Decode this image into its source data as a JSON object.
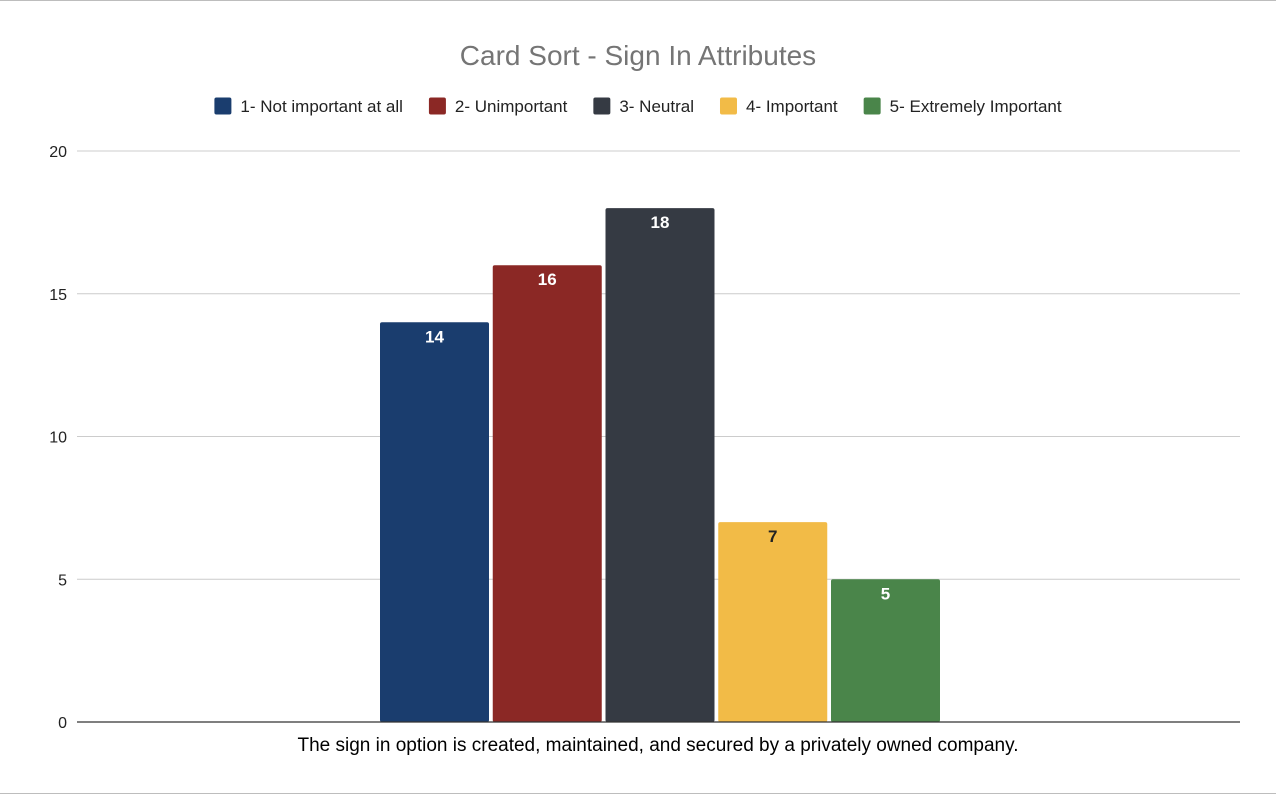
{
  "chart_data": {
    "type": "bar",
    "title": "Card Sort - Sign In Attributes",
    "xlabel": "The sign in option is created, maintained, and secured by a privately owned company.",
    "ylabel": "",
    "categories": [
      "The sign in option is created, maintained, and secured by a privately owned company."
    ],
    "series": [
      {
        "name": "1- Not important at all",
        "values": [
          14
        ],
        "color": "#1a3d6e",
        "label_color": "#ffffff"
      },
      {
        "name": "2- Unimportant",
        "values": [
          16
        ],
        "color": "#8b2825",
        "label_color": "#ffffff"
      },
      {
        "name": "3- Neutral",
        "values": [
          18
        ],
        "color": "#353a43",
        "label_color": "#ffffff"
      },
      {
        "name": "4- Important",
        "values": [
          7
        ],
        "color": "#f2bb47",
        "label_color": "#222222"
      },
      {
        "name": "5- Extremely Important",
        "values": [
          5
        ],
        "color": "#4a854a",
        "label_color": "#ffffff"
      }
    ],
    "ylim": [
      0,
      20
    ],
    "yticks": [
      0,
      5,
      10,
      15,
      20
    ],
    "ytick_labels": [
      "0",
      "5",
      "10",
      "15",
      "20"
    ],
    "grid": true,
    "legend_position": "top",
    "data_labels": true
  }
}
